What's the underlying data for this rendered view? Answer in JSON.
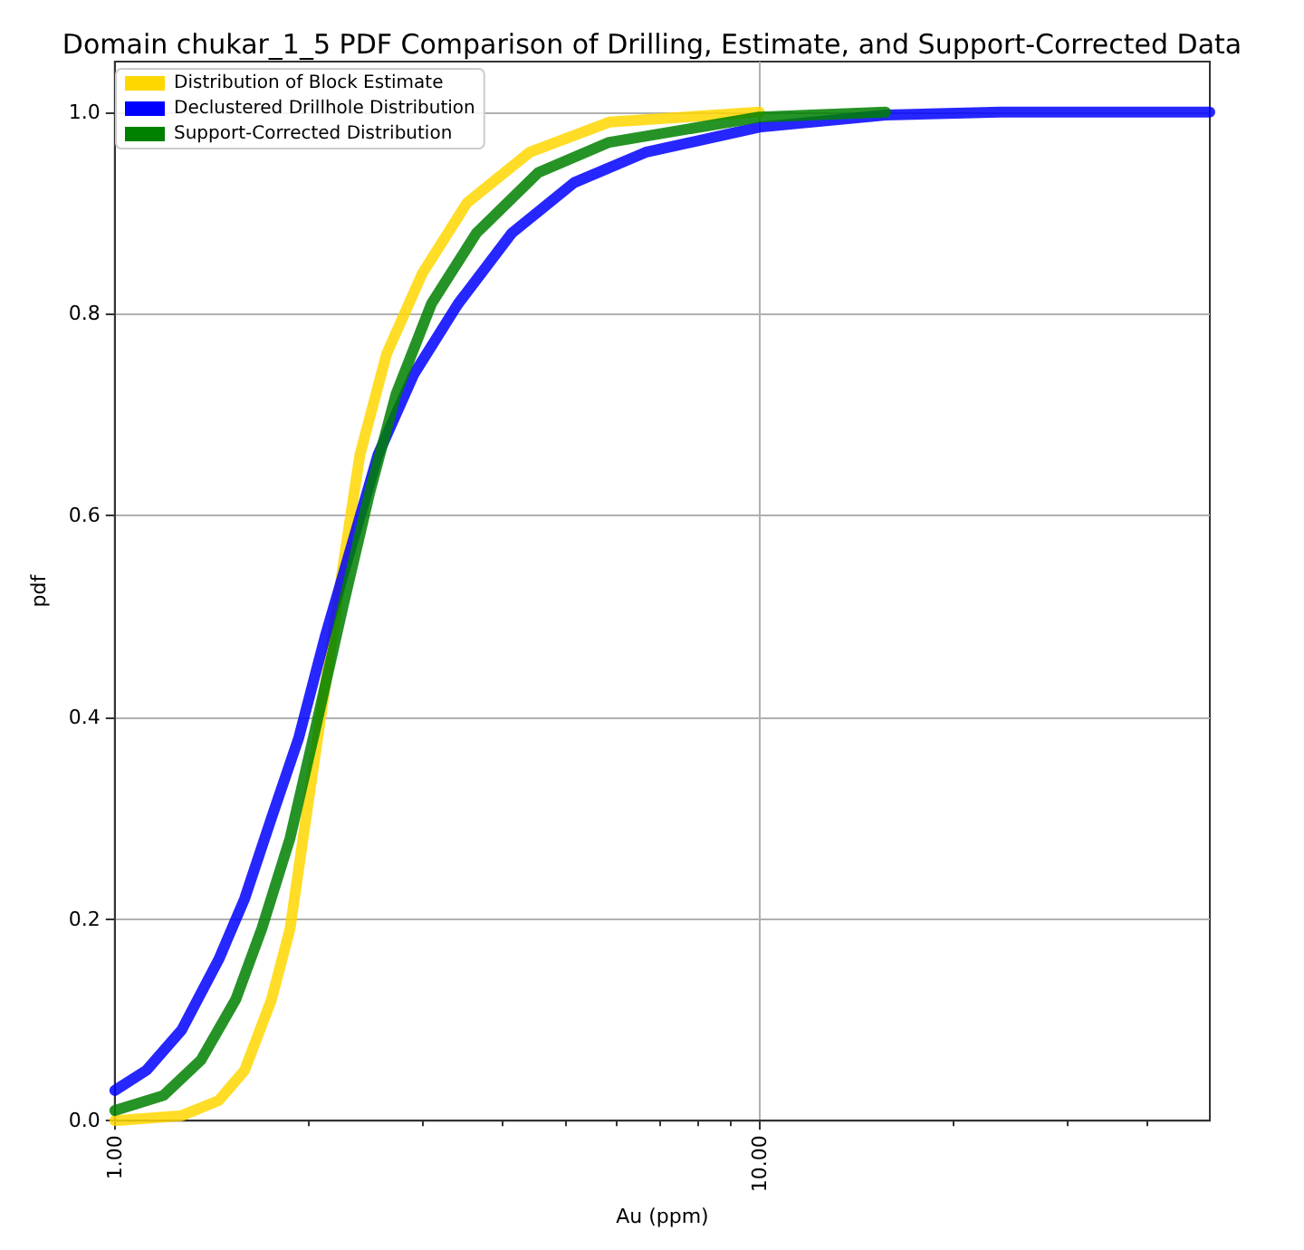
{
  "chart_data": {
    "type": "line",
    "title": "Domain chukar_1_5 PDF Comparison of Drilling, Estimate, and Support-Corrected Data",
    "xlabel": "Au (ppm)",
    "ylabel": "pdf",
    "series": [
      {
        "name": "Distribution of Block Estimate",
        "color": "#ffd700",
        "x": [
          1,
          1.27,
          1.45,
          1.59,
          1.75,
          1.87,
          1.99,
          2.12,
          2.26,
          2.4,
          2.64,
          3.0,
          3.52,
          4.4,
          5.85,
          10
        ],
        "values": [
          0.0,
          0.005,
          0.02,
          0.05,
          0.12,
          0.19,
          0.31,
          0.43,
          0.55,
          0.66,
          0.76,
          0.84,
          0.91,
          0.96,
          0.99,
          1.0
        ]
      },
      {
        "name": "Declustered Drillhole Distribution",
        "color": "#0000ff",
        "x": [
          1,
          1.12,
          1.27,
          1.45,
          1.59,
          1.75,
          1.93,
          2.12,
          2.33,
          2.56,
          2.91,
          3.41,
          4.13,
          5.16,
          6.66,
          10,
          15.7,
          23.7,
          50
        ],
        "values": [
          0.03,
          0.05,
          0.09,
          0.16,
          0.22,
          0.3,
          0.38,
          0.48,
          0.57,
          0.66,
          0.74,
          0.81,
          0.88,
          0.93,
          0.96,
          0.985,
          0.997,
          1.0,
          1.0
        ]
      },
      {
        "name": "Support-Corrected Distribution",
        "color": "#008000",
        "x": [
          1,
          1.19,
          1.36,
          1.54,
          1.69,
          1.87,
          2.05,
          2.26,
          2.48,
          2.73,
          3.1,
          3.64,
          4.54,
          5.85,
          10,
          15.7
        ],
        "values": [
          0.01,
          0.025,
          0.06,
          0.12,
          0.19,
          0.28,
          0.39,
          0.51,
          0.62,
          0.72,
          0.81,
          0.88,
          0.94,
          0.97,
          0.995,
          1.0
        ]
      }
    ],
    "log": "x",
    "xlim": [
      1,
      50
    ],
    "xticks": [
      {
        "value": 1,
        "label": "1.00"
      },
      {
        "value": 10,
        "label": "10.00"
      }
    ],
    "ylim": [
      0,
      1.05
    ],
    "yticks": [
      {
        "value": 0,
        "label": "0.0"
      },
      {
        "value": 0.2,
        "label": "0.2"
      },
      {
        "value": 0.4,
        "label": "0.4"
      },
      {
        "value": 0.6,
        "label": "0.6"
      },
      {
        "value": 0.8,
        "label": "0.8"
      },
      {
        "value": 1.0,
        "label": "1.0"
      }
    ],
    "grid": true,
    "legend": "top left",
    "marker": "none",
    "line_style": "solid"
  }
}
